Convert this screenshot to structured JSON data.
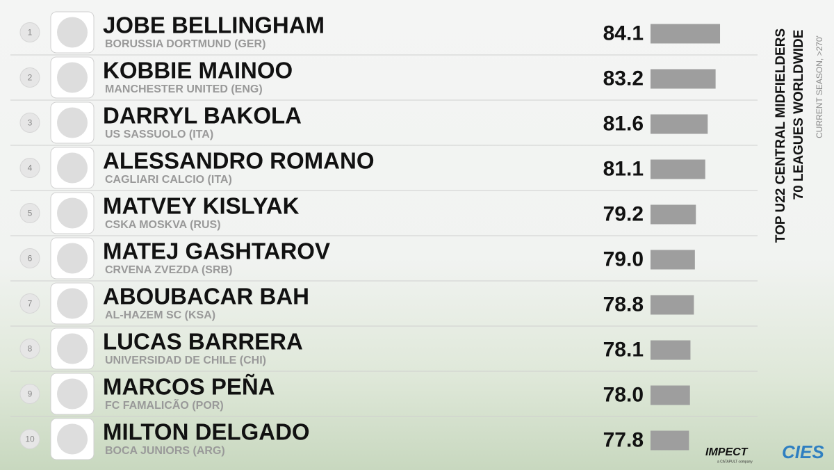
{
  "chart_data": {
    "type": "bar",
    "title": "TOP U22 CENTRAL MIDFIELDERS",
    "subtitle": "70 LEAGUES WORLDWIDE",
    "note": "CURRENT SEASON, >270'",
    "ranks": [
      1,
      2,
      3,
      4,
      5,
      6,
      7,
      8,
      9,
      10
    ],
    "categories": [
      "JOBE BELLINGHAM",
      "KOBBIE MAINOO",
      "DARRYL BAKOLA",
      "ALESSANDRO ROMANO",
      "MATVEY KISLYAK",
      "MATEJ GASHTAROV",
      "ABOUBACAR BAH",
      "LUCAS BARRERA",
      "MARCOS PEÑA",
      "MILTON DELGADO"
    ],
    "teams": [
      "BORUSSIA DORTMUND (GER)",
      "MANCHESTER UNITED (ENG)",
      "US SASSUOLO (ITA)",
      "CAGLIARI CALCIO (ITA)",
      "CSKA MOSKVA (RUS)",
      "CRVENA ZVEZDA (SRB)",
      "AL-HAZEM SC (KSA)",
      "UNIVERSIDAD DE CHILE (CHI)",
      "FC FAMALICÃO (POR)",
      "BOCA JUNIORS (ARG)"
    ],
    "values": [
      84.1,
      83.2,
      81.6,
      81.1,
      79.2,
      79.0,
      78.8,
      78.1,
      78.0,
      77.8
    ],
    "value_labels": [
      "84.1",
      "83.2",
      "81.6",
      "81.1",
      "79.2",
      "79.0",
      "78.8",
      "78.1",
      "78.0",
      "77.8"
    ],
    "xlim": [
      70,
      85
    ],
    "color": "#9e9e9e",
    "logos": [
      "IMPECT",
      "a CATAPULT company",
      "CIES"
    ]
  }
}
